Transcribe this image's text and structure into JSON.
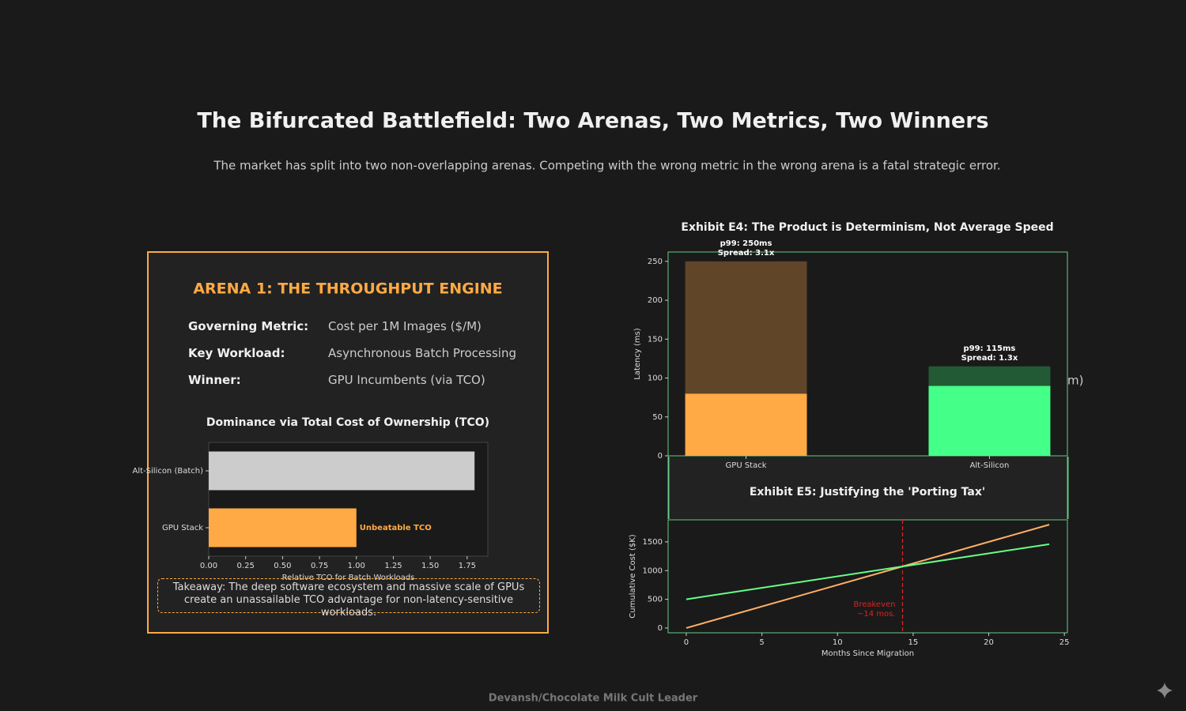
{
  "header": {
    "title": "The Bifurcated Battlefield: Two Arenas, Two Metrics, Two Winners",
    "subtitle": "The market has split into two non-overlapping arenas. Competing with the wrong metric in the wrong arena is a fatal strategic error."
  },
  "arena1": {
    "title": "ARENA 1: THE THROUGHPUT ENGINE",
    "rows": [
      [
        "Governing Metric:",
        "Cost per 1M Images ($/M)"
      ],
      [
        "Key Workload:",
        "Asynchronous Batch Processing"
      ],
      [
        "Winner:",
        "GPU Incumbents (via TCO)"
      ]
    ],
    "takeaway": "Takeaway: The deep software ecosystem and massive scale of GPUs create an unassailable TCO advantage for non-latency-sensitive workloads."
  },
  "fragment": "m)",
  "chart_data": [
    {
      "type": "barh",
      "title": "Dominance via Total Cost of Ownership (TCO)",
      "categories": [
        "GPU Stack",
        "Alt-Silicon (Batch)"
      ],
      "values": [
        1.0,
        1.8
      ],
      "colors": [
        "#ffaa44",
        "#cccccc"
      ],
      "annotation": "Unbeatable TCO",
      "annotation_color": "#ffaa44",
      "xlabel": "Relative TCO for Batch Workloads",
      "xlim": [
        0,
        1.89
      ],
      "xticks": [
        {
          "value": 0,
          "label": "0.00"
        },
        {
          "value": 0.25,
          "label": "0.25"
        },
        {
          "value": 0.5,
          "label": "0.50"
        },
        {
          "value": 0.75,
          "label": "0.75"
        },
        {
          "value": 1.0,
          "label": "1.00"
        },
        {
          "value": 1.25,
          "label": "1.25"
        },
        {
          "value": 1.5,
          "label": "1.50"
        },
        {
          "value": 1.75,
          "label": "1.75"
        }
      ],
      "frame_color": "#444444"
    },
    {
      "type": "stacked_bar",
      "title": "Exhibit E4: The Product is Determinism, Not Average Speed",
      "categories": [
        "GPU Stack",
        "Alt-Silicon"
      ],
      "series": [
        {
          "values": [
            80,
            90
          ],
          "colors": [
            "#ffaa44",
            "#44ff88"
          ]
        },
        {
          "values": [
            170,
            25
          ],
          "colors": [
            "#614529",
            "#215a34"
          ]
        }
      ],
      "annotations": [
        [
          "p99: 250ms",
          "Spread: 3.1x"
        ],
        [
          "p99: 115ms",
          "Spread: 1.3x"
        ]
      ],
      "ylabel": "Latency (ms)",
      "ylim": [
        0,
        262
      ],
      "yticks": [
        0,
        50,
        100,
        150,
        200,
        250
      ],
      "frame_color": "#66cc88"
    },
    {
      "type": "line",
      "title": "Exhibit E5: Justifying the 'Porting Tax'",
      "x": [
        0,
        24
      ],
      "series": [
        {
          "color": "#ffb066",
          "values": [
            0,
            1800
          ]
        },
        {
          "color": "#66ff88",
          "values": [
            500,
            1460
          ]
        }
      ],
      "breakeven": {
        "x": 14.3,
        "label": [
          "Breakeven",
          "~14 mos."
        ],
        "color": "#dd2222"
      },
      "xlabel": "Months Since Migration",
      "ylabel": "Cumulative Cost ($K)",
      "xlim": [
        -1.2,
        25.2
      ],
      "xticks": [
        0,
        5,
        10,
        15,
        20,
        25
      ],
      "ylim": [
        -83,
        1884
      ],
      "yticks": [
        0,
        500,
        1000,
        1500
      ],
      "frame_color": "#66cc88"
    }
  ],
  "footer": "Devansh/Chocolate Milk Cult Leader"
}
